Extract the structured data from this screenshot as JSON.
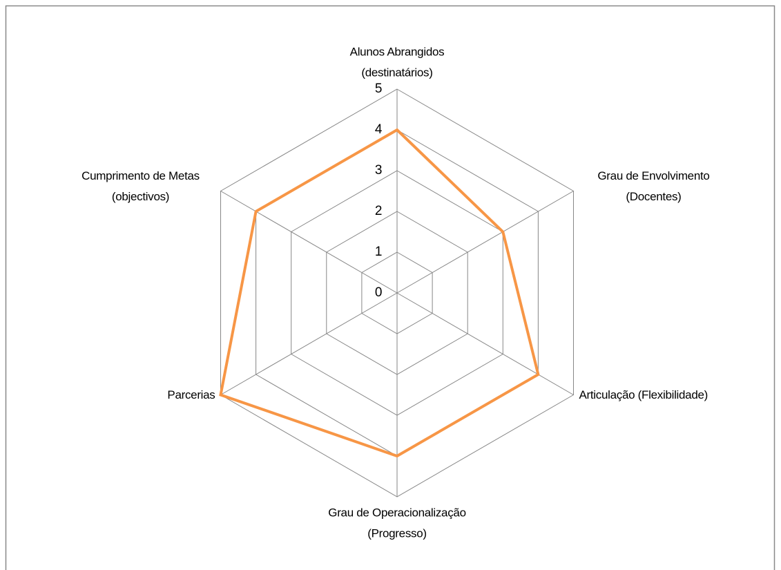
{
  "chart_data": {
    "type": "radar",
    "categories": [
      [
        "Alunos Abrangidos",
        "(destinatários)"
      ],
      [
        "Grau de Envolvimento",
        "(Docentes)"
      ],
      [
        "Articulação (Flexibilidade)"
      ],
      [
        "Grau de Operacionalização",
        "(Progresso)"
      ],
      [
        "Parcerias"
      ],
      [
        "Cumprimento de Metas",
        "(objectivos)"
      ]
    ],
    "values": [
      4,
      3,
      4,
      4,
      5,
      4
    ],
    "color": "#f79646",
    "rlim": [
      0,
      5
    ],
    "rticks": [
      0,
      1,
      2,
      3,
      4,
      5
    ],
    "grid": true
  }
}
